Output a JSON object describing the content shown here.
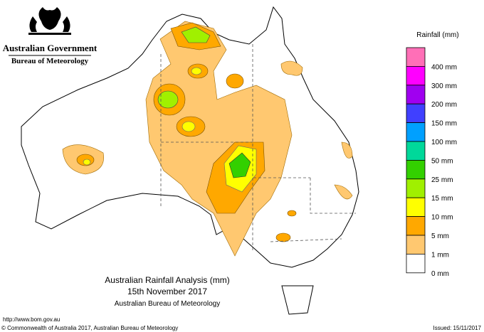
{
  "header": {
    "government": "Australian Government",
    "agency": "Bureau of Meteorology"
  },
  "title": {
    "line1": "Australian Rainfall Analysis (mm)",
    "line2": "15th November 2017",
    "line3": "Australian Bureau of Meteorology"
  },
  "legend": {
    "title": "Rainfall (mm)",
    "items": [
      {
        "label": null,
        "color": "#ff6fb7"
      },
      {
        "label": "400 mm",
        "color": "#ff00ff"
      },
      {
        "label": "300 mm",
        "color": "#a000f0"
      },
      {
        "label": "200 mm",
        "color": "#4040ff"
      },
      {
        "label": "150 mm",
        "color": "#00a0ff"
      },
      {
        "label": "100 mm",
        "color": "#00d89a"
      },
      {
        "label": "50 mm",
        "color": "#33d000"
      },
      {
        "label": "25 mm",
        "color": "#a0f000"
      },
      {
        "label": "15 mm",
        "color": "#ffff00"
      },
      {
        "label": "10 mm",
        "color": "#ffa800"
      },
      {
        "label": "5 mm",
        "color": "#ffc870"
      },
      {
        "label": "1 mm",
        "color": "#ffffff"
      },
      {
        "label": "0 mm",
        "color": null
      }
    ]
  },
  "footer": {
    "url": "http://www.bom.gov.au",
    "copyright": "© Commonwealth of Australia 2017, Australian Bureau of Meteorology",
    "issued": "Issued: 15/11/2017"
  }
}
